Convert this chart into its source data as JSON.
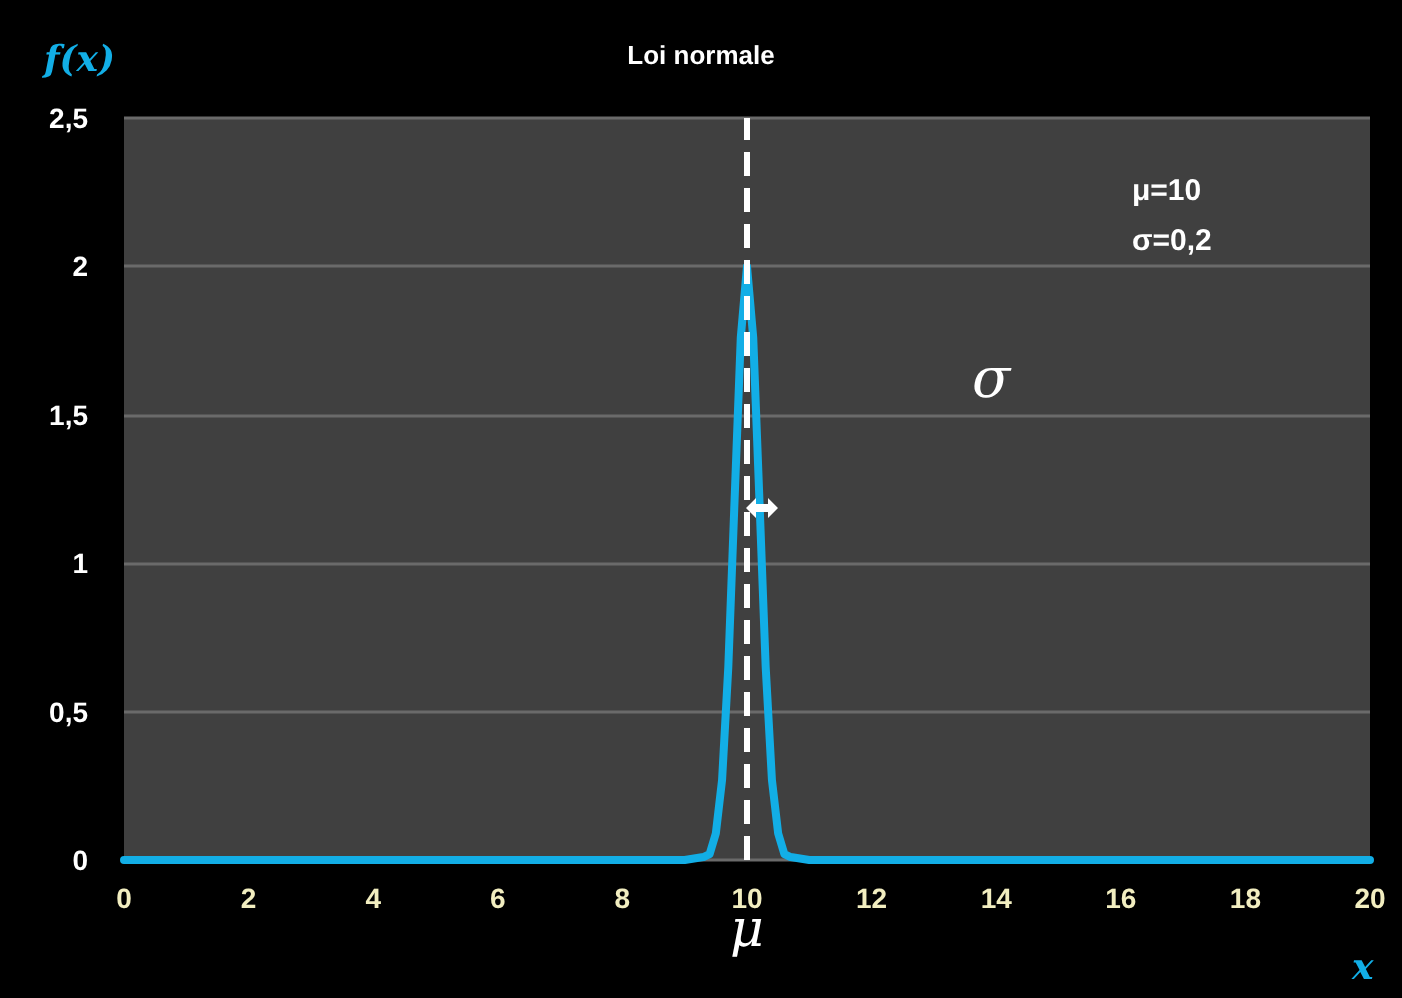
{
  "chart_data": {
    "type": "line",
    "title": "Loi normale",
    "xlabel": "x",
    "ylabel": "f(x)",
    "x": [
      0,
      2,
      4,
      6,
      8,
      9,
      9.3,
      9.4,
      9.5,
      9.6,
      9.7,
      9.8,
      9.9,
      10,
      10.1,
      10.2,
      10.3,
      10.4,
      10.5,
      10.6,
      10.7,
      11,
      12,
      14,
      16,
      18,
      20
    ],
    "series": [
      {
        "color": "#12aee6",
        "values": [
          0,
          0,
          0,
          0,
          0,
          0,
          0.01,
          0.02,
          0.09,
          0.27,
          0.65,
          1.21,
          1.76,
          2.0,
          1.76,
          1.21,
          0.65,
          0.27,
          0.09,
          0.02,
          0.01,
          0,
          0,
          0,
          0,
          0,
          0
        ]
      }
    ],
    "xlim": [
      0,
      20
    ],
    "xticks": [
      0,
      2,
      4,
      6,
      8,
      10,
      12,
      14,
      16,
      18,
      20
    ],
    "ylim": [
      0,
      2.5
    ],
    "yticks": [
      {
        "value": 0,
        "label": "0"
      },
      {
        "value": 0.5,
        "label": "0,5"
      },
      {
        "value": 1,
        "label": "1"
      },
      {
        "value": 1.5,
        "label": "1,5"
      },
      {
        "value": 2,
        "label": "2"
      },
      {
        "value": 2.5,
        "label": "2,5"
      }
    ],
    "grid": "y",
    "marker": "none",
    "line_style": "solid",
    "ref_lines": [
      {
        "axis": "x",
        "value": 10,
        "label": "μ",
        "color": "#ffffff",
        "line_style": "dashed"
      }
    ],
    "annotations": [
      "μ=10",
      "σ=0,2",
      "σ"
    ]
  }
}
